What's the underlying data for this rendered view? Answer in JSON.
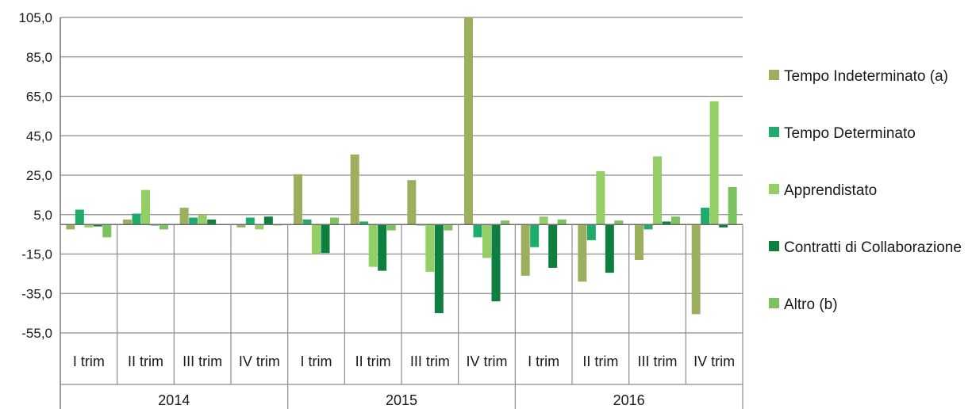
{
  "chart_data": {
    "type": "bar",
    "title": "",
    "xlabel": "",
    "ylabel": "",
    "ylim": [
      -55,
      105
    ],
    "yticks": [
      105,
      85,
      65,
      45,
      25,
      5,
      -15,
      -35,
      -55
    ],
    "ytick_labels": [
      "105,0",
      "85,0",
      "65,0",
      "45,0",
      "25,0",
      "5,0",
      "-15,0",
      "-35,0",
      "-55,0"
    ],
    "grid": "horizontal",
    "legend_position": "right",
    "years": [
      "2014",
      "2015",
      "2016"
    ],
    "categories": [
      "I trim",
      "II trim",
      "III trim",
      "IV trim",
      "I trim",
      "II trim",
      "III trim",
      "IV trim",
      "I trim",
      "II trim",
      "III trim",
      "IV trim"
    ],
    "series": [
      {
        "name": "Tempo Indeterminato (a)",
        "color": "#9caf5e",
        "values": [
          -2.5,
          2.5,
          8.5,
          -1.5,
          25.5,
          35.5,
          22.5,
          105.0,
          -26.0,
          -29.0,
          -18.0,
          -45.5
        ]
      },
      {
        "name": "Tempo Determinato",
        "color": "#1fab6c",
        "values": [
          7.5,
          5.5,
          3.5,
          3.5,
          2.5,
          1.5,
          -0.5,
          -6.5,
          -11.5,
          -8.0,
          -2.5,
          8.5
        ]
      },
      {
        "name": "Apprendistato",
        "color": "#93cf64",
        "values": [
          -1.5,
          17.5,
          5.0,
          -2.5,
          -15.0,
          -21.5,
          -24.0,
          -17.0,
          4.0,
          27.0,
          34.5,
          62.5
        ]
      },
      {
        "name": "Contratti di Collaborazione",
        "color": "#0e7f3e",
        "values": [
          -1.0,
          -0.5,
          2.5,
          4.0,
          -14.5,
          -23.5,
          -45.0,
          -39.0,
          -22.0,
          -24.5,
          1.5,
          -1.5
        ]
      },
      {
        "name": "Altro (b)",
        "color": "#7cc261",
        "values": [
          -6.5,
          -2.5,
          0.0,
          -0.5,
          3.5,
          -3.0,
          -3.0,
          2.0,
          2.5,
          2.0,
          4.0,
          19.0
        ]
      }
    ]
  }
}
